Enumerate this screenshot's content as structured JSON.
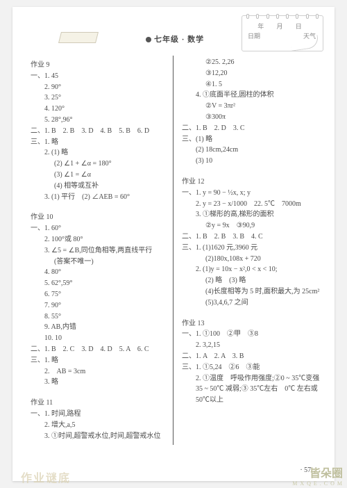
{
  "header": {
    "subject": "七年级 · 数学",
    "date_chars": "年  月  日",
    "label_left": "日期",
    "label_right": "天气"
  },
  "left": [
    {
      "cls": "ln sec",
      "t": "作业 9"
    },
    {
      "cls": "ln",
      "t": "一、1. 45"
    },
    {
      "cls": "ln sub",
      "t": "2. 90°"
    },
    {
      "cls": "ln sub",
      "t": "3. 25°"
    },
    {
      "cls": "ln sub",
      "t": "4. 120°"
    },
    {
      "cls": "ln sub",
      "t": "5. 28°,96°"
    },
    {
      "cls": "ln",
      "t": "二、1. B　2. B　3. D　4. B　5. B　6. D"
    },
    {
      "cls": "ln",
      "t": "三、1. 略"
    },
    {
      "cls": "ln sub",
      "t": "2. (1) 略"
    },
    {
      "cls": "ln sub2",
      "t": "(2) ∠1 + ∠α = 180°"
    },
    {
      "cls": "ln sub2",
      "t": "(3) ∠1 = ∠α"
    },
    {
      "cls": "ln sub2",
      "t": "(4) 相等或互补"
    },
    {
      "cls": "ln sub",
      "t": "3. (1) 平行　(2) ∠AEB = 60°"
    },
    {
      "cls": "gap",
      "t": ""
    },
    {
      "cls": "ln sec",
      "t": "作业 10"
    },
    {
      "cls": "ln",
      "t": "一、1. 60°"
    },
    {
      "cls": "ln sub",
      "t": "2. 100°或 80°"
    },
    {
      "cls": "ln sub",
      "t": "3. ∠5 = ∠B,同位角相等,两直线平行"
    },
    {
      "cls": "ln sub2",
      "t": "(答案不唯一)"
    },
    {
      "cls": "ln sub",
      "t": "4. 80°"
    },
    {
      "cls": "ln sub",
      "t": "5. 62°,59°"
    },
    {
      "cls": "ln sub",
      "t": "6. 75°"
    },
    {
      "cls": "ln sub",
      "t": "7. 90°"
    },
    {
      "cls": "ln sub",
      "t": "8. 55°"
    },
    {
      "cls": "ln sub",
      "t": "9. AB,内错"
    },
    {
      "cls": "ln sub",
      "t": "10. 10"
    },
    {
      "cls": "ln",
      "t": "二、1. B　2. C　3. D　4. D　5. A　6. C"
    },
    {
      "cls": "ln",
      "t": "三、1. 略"
    },
    {
      "cls": "ln sub",
      "t": "2.　AB = 3cm"
    },
    {
      "cls": "ln sub",
      "t": "3. 略"
    },
    {
      "cls": "gap",
      "t": ""
    },
    {
      "cls": "ln sec",
      "t": "作业 11"
    },
    {
      "cls": "ln",
      "t": "一、1. 时间,路程"
    },
    {
      "cls": "ln sub",
      "t": "2. 增大,a,5"
    },
    {
      "cls": "ln sub",
      "t": "3. ①时间,超警戒水位,时间,超警戒水位"
    }
  ],
  "right": [
    {
      "cls": "ln sub2",
      "t": "②25. 2,26"
    },
    {
      "cls": "ln sub2",
      "t": "③12,20"
    },
    {
      "cls": "ln sub2",
      "t": "④1. 5"
    },
    {
      "cls": "ln sub",
      "t": "4. ①底面半径,圆柱的体积"
    },
    {
      "cls": "ln sub2",
      "t": "②V = 3πr²"
    },
    {
      "cls": "ln sub2",
      "t": "③300π"
    },
    {
      "cls": "ln",
      "t": "二、1. B　2. D　3. C"
    },
    {
      "cls": "ln",
      "t": "三、(1) 略"
    },
    {
      "cls": "ln sub",
      "t": "(2) 18cm,24cm"
    },
    {
      "cls": "ln sub",
      "t": "(3) 10"
    },
    {
      "cls": "gap",
      "t": ""
    },
    {
      "cls": "ln sec",
      "t": "作业 12"
    },
    {
      "cls": "ln",
      "t": "一、1. y = 90 − ½x, x; y"
    },
    {
      "cls": "ln sub",
      "t": "2. y = 23 − x/1000　22. 5℃　7000m"
    },
    {
      "cls": "ln sub",
      "t": "3. ①梯形的高,梯形的面积"
    },
    {
      "cls": "ln sub2",
      "t": "②y = 9x　③90,9"
    },
    {
      "cls": "ln",
      "t": "二、1. B　2. B　3. B　4. C"
    },
    {
      "cls": "ln",
      "t": "三、1. (1)1620 元,3960 元"
    },
    {
      "cls": "ln sub2",
      "t": "(2)180x,108x + 720"
    },
    {
      "cls": "ln sub",
      "t": "2. (1)y = 10x − x²,0 < x < 10;"
    },
    {
      "cls": "ln sub2",
      "t": "(2) 略　(3) 略"
    },
    {
      "cls": "ln sub2",
      "t": "(4)长度相等为 5 时,面积最大,为 25cm²"
    },
    {
      "cls": "ln sub2",
      "t": "(5)3,4,6,7 之间"
    },
    {
      "cls": "gap",
      "t": ""
    },
    {
      "cls": "ln sec",
      "t": "作业 13"
    },
    {
      "cls": "ln",
      "t": "一、1. ①100　②甲　③8"
    },
    {
      "cls": "ln sub",
      "t": "2. 3,2,15"
    },
    {
      "cls": "ln",
      "t": "二、1. A　2. A　3. B"
    },
    {
      "cls": "ln",
      "t": "三、1. ①5,24　②6　③能"
    },
    {
      "cls": "ln sub",
      "t": "2. ①温度　呼吸作用强度;②0 ~ 35℃变强"
    },
    {
      "cls": "ln sub",
      "t": "35 ~ 50℃ 减弱;③ 35℃左右　0℃ 左右或"
    },
    {
      "cls": "ln sub",
      "t": "50℃以上"
    }
  ],
  "footer": {
    "page": "· 57 ·"
  },
  "watermark": {
    "wm1": "作业谜底",
    "wm2a": "皆朵圈",
    "wm2b": "M X Q E . C O M"
  }
}
